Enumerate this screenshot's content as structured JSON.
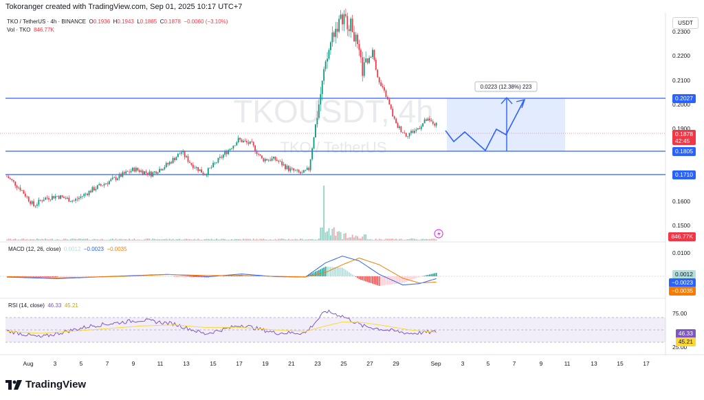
{
  "header": {
    "credit": "Tokoranger created with TradingView.com, Sep 01, 2025 10:17 UTC+7",
    "symbol_line": "TKO / TetherUS · 4h · BINANCE",
    "ohlc": {
      "o_label": "O",
      "o": "0.1936",
      "h_label": "H",
      "h": "0.1943",
      "l_label": "L",
      "l": "0.1865",
      "c_label": "C",
      "c": "0.1878",
      "chg": "−0.0060 (−3.10%)"
    },
    "vol_label": "Vol · TKO",
    "vol_value": "846.77K",
    "currency": "USDT"
  },
  "watermark": {
    "main": "TKOUSDT, 4h",
    "sub": "TKO / TetherUS"
  },
  "price_axis": [
    "0.2300",
    "0.2200",
    "0.2100",
    "0.2000",
    "0.1900",
    "0.1600",
    "0.1500"
  ],
  "price_tags": {
    "r1": "0.2027",
    "r2": "0.1805",
    "r3": "0.1710",
    "last": "0.1878",
    "countdown": "42:45",
    "vol": "846.77K"
  },
  "projection_label": "0.0223 (12.38%) 223",
  "macd": {
    "title": "MACD (12, 26, close)",
    "v1": "0.0012",
    "v2": "−0.0023",
    "v3": "−0.0035",
    "axis": "0.0100",
    "tag1": "0.0012",
    "tag2": "−0.0023",
    "tag3": "−0.0035"
  },
  "rsi": {
    "title": "RSI (14, close)",
    "v1": "46.33",
    "v2": "45.21",
    "axis_top": "75.00",
    "axis_bot": "25.00",
    "tag1": "46.33",
    "tag2": "45.21"
  },
  "time_axis": [
    "Aug",
    "3",
    "5",
    "7",
    "9",
    "11",
    "13",
    "15",
    "17",
    "19",
    "21",
    "23",
    "25",
    "27",
    "29",
    "Sep",
    "3",
    "5",
    "7",
    "9",
    "11",
    "13",
    "15",
    "17"
  ],
  "brand": "TradingView",
  "colors": {
    "up": "#089981",
    "down": "#f23645",
    "blue": "#2962ff",
    "orange": "#f57c00",
    "rsi": "#7e57c2"
  },
  "chart_data": {
    "type": "candlestick",
    "title": "TKOUSDT, 4h",
    "ylim": [
      0.145,
      0.234
    ],
    "levels": [
      0.2027,
      0.1805,
      0.171
    ],
    "anchors": [
      {
        "i": 0,
        "p": 0.167
      },
      {
        "i": 8,
        "p": 0.162
      },
      {
        "i": 16,
        "p": 0.155
      },
      {
        "i": 22,
        "p": 0.158
      },
      {
        "i": 30,
        "p": 0.159
      },
      {
        "i": 40,
        "p": 0.157
      },
      {
        "i": 52,
        "p": 0.162
      },
      {
        "i": 64,
        "p": 0.166
      },
      {
        "i": 76,
        "p": 0.17
      },
      {
        "i": 86,
        "p": 0.168
      },
      {
        "i": 96,
        "p": 0.172
      },
      {
        "i": 104,
        "p": 0.177
      },
      {
        "i": 110,
        "p": 0.172
      },
      {
        "i": 118,
        "p": 0.168
      },
      {
        "i": 128,
        "p": 0.175
      },
      {
        "i": 138,
        "p": 0.182
      },
      {
        "i": 146,
        "p": 0.18
      },
      {
        "i": 152,
        "p": 0.174
      },
      {
        "i": 160,
        "p": 0.174
      },
      {
        "i": 168,
        "p": 0.17
      },
      {
        "i": 176,
        "p": 0.168
      },
      {
        "i": 180,
        "p": 0.17
      },
      {
        "i": 184,
        "p": 0.188
      },
      {
        "i": 188,
        "p": 0.205
      },
      {
        "i": 194,
        "p": 0.225
      },
      {
        "i": 200,
        "p": 0.232
      },
      {
        "i": 206,
        "p": 0.228
      },
      {
        "i": 212,
        "p": 0.21
      },
      {
        "i": 218,
        "p": 0.218
      },
      {
        "i": 222,
        "p": 0.205
      },
      {
        "i": 226,
        "p": 0.2
      },
      {
        "i": 232,
        "p": 0.188
      },
      {
        "i": 238,
        "p": 0.184
      },
      {
        "i": 244,
        "p": 0.186
      },
      {
        "i": 250,
        "p": 0.19
      },
      {
        "i": 256,
        "p": 0.188
      }
    ],
    "macd_anchors": [
      {
        "i": 0,
        "m": -0.0004,
        "s": -0.0002
      },
      {
        "i": 30,
        "m": -0.0012,
        "s": -0.0008
      },
      {
        "i": 70,
        "m": 0.0002,
        "s": 0.0
      },
      {
        "i": 96,
        "m": 0.001,
        "s": 0.0009
      },
      {
        "i": 120,
        "m": -0.0002,
        "s": 0.0004
      },
      {
        "i": 140,
        "m": 0.0012,
        "s": 0.0004
      },
      {
        "i": 160,
        "m": -0.0002,
        "s": 0.0
      },
      {
        "i": 178,
        "m": -0.0004,
        "s": -0.0003
      },
      {
        "i": 190,
        "m": 0.007,
        "s": 0.002
      },
      {
        "i": 200,
        "m": 0.0105,
        "s": 0.006
      },
      {
        "i": 210,
        "m": 0.008,
        "s": 0.0095
      },
      {
        "i": 222,
        "m": 0.001,
        "s": 0.006
      },
      {
        "i": 236,
        "m": -0.0045,
        "s": -0.001
      },
      {
        "i": 246,
        "m": -0.0038,
        "s": -0.0035
      },
      {
        "i": 256,
        "m": -0.0012,
        "s": -0.003
      }
    ],
    "rsi_anchors": [
      {
        "i": 0,
        "r": 48,
        "a": 47
      },
      {
        "i": 20,
        "r": 35,
        "a": 43
      },
      {
        "i": 50,
        "r": 58,
        "a": 50
      },
      {
        "i": 80,
        "r": 70,
        "a": 58
      },
      {
        "i": 100,
        "r": 62,
        "a": 60
      },
      {
        "i": 118,
        "r": 42,
        "a": 55
      },
      {
        "i": 140,
        "r": 60,
        "a": 55
      },
      {
        "i": 160,
        "r": 44,
        "a": 50
      },
      {
        "i": 178,
        "r": 44,
        "a": 47
      },
      {
        "i": 190,
        "r": 88,
        "a": 58
      },
      {
        "i": 200,
        "r": 78,
        "a": 66
      },
      {
        "i": 212,
        "r": 58,
        "a": 65
      },
      {
        "i": 226,
        "r": 50,
        "a": 58
      },
      {
        "i": 240,
        "r": 43,
        "a": 50
      },
      {
        "i": 256,
        "r": 46,
        "a": 45
      }
    ]
  }
}
